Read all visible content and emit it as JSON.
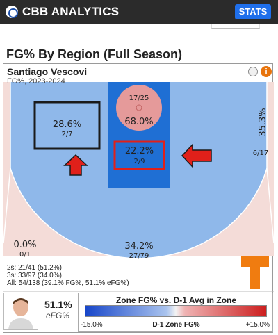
{
  "app": {
    "name": "CBB ANALYTICS",
    "nav_button": "STATS"
  },
  "page": {
    "title": "FG% By Region (Full Season)"
  },
  "player": {
    "name": "Santiago Vescovi",
    "subtitle": "FG%, 2023-2024"
  },
  "zones": {
    "rim": {
      "pct": "68.0%",
      "frac": "17/25"
    },
    "paint": {
      "pct": "22.2%",
      "frac": "2/9"
    },
    "left_midrange": {
      "pct": "28.6%",
      "frac": "2/7"
    },
    "right_midrange": {
      "pct": "35.3%",
      "frac": "6/17"
    },
    "left_corner_three": {
      "pct": "0.0%",
      "frac": "0/1"
    },
    "above_break_three": {
      "pct": "34.2%",
      "frac": "27/79"
    }
  },
  "colors": {
    "cold_blue": "#8fb8ea",
    "paint_blue": "#1f6fd4",
    "rim_red": "#e59a9a",
    "three_pink": "#f4dcd8",
    "highlight_red": "#e0201a",
    "team_orange": "#f07c10"
  },
  "stats": {
    "line_2s": "2s: 21/41 (51.2%)",
    "line_3s": "3s: 33/97 (34.0%)",
    "line_all": "All: 54/138 (39.1% FG%, 51.1% eFG%)"
  },
  "summary": {
    "efg_value": "51.1%",
    "efg_label": "eFG%"
  },
  "legend": {
    "title": "Zone FG% vs. D-1 Avg in Zone",
    "min": "-15.0%",
    "mid": "D-1 Zone FG%",
    "max": "+15.0%"
  }
}
